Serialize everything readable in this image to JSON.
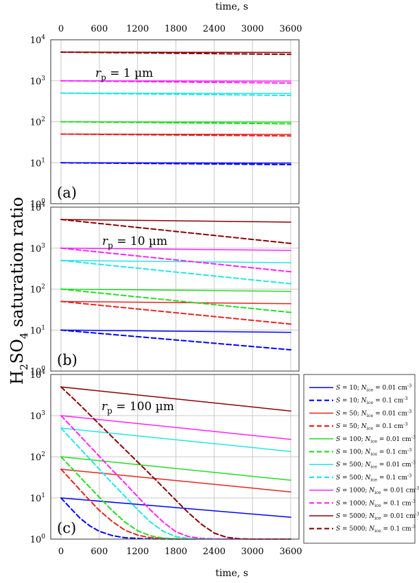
{
  "figure": {
    "ylabel": {
      "pre": "H",
      "sub1": "2",
      "mid": "SO",
      "sub2": "4",
      "post": " saturation ratio"
    },
    "xlabel_top": "time, s",
    "xlabel_bottom": "time, s"
  },
  "chart_data": {
    "type": "line",
    "x_ticks": [
      0,
      600,
      1200,
      1800,
      2400,
      3000,
      3600
    ],
    "xlim": [
      0,
      3600
    ],
    "yscale": "log",
    "ylim": [
      1,
      10000
    ],
    "grid": true,
    "legend_placement": "right of panel (c)",
    "series_styles": [
      {
        "S": 10,
        "color": "#0000ff"
      },
      {
        "S": 50,
        "color": "#e8231f"
      },
      {
        "S": 100,
        "color": "#22dd22"
      },
      {
        "S": 500,
        "color": "#22e6e6"
      },
      {
        "S": 1000,
        "color": "#ff22ff"
      },
      {
        "S": 5000,
        "color": "#8b0000"
      }
    ],
    "legend": [
      {
        "S": "10",
        "N": "0.01",
        "dashed": false,
        "color": "#0000ff"
      },
      {
        "S": "10",
        "N": "0.1",
        "dashed": true,
        "color": "#0000ff"
      },
      {
        "S": "50",
        "N": "0.01",
        "dashed": false,
        "color": "#e8231f"
      },
      {
        "S": "50",
        "N": "0.1",
        "dashed": true,
        "color": "#e8231f"
      },
      {
        "S": "100",
        "N": "0.01",
        "dashed": false,
        "color": "#22dd22"
      },
      {
        "S": "100",
        "N": "0.1",
        "dashed": true,
        "color": "#22dd22"
      },
      {
        "S": "500",
        "N": "0.01",
        "dashed": false,
        "color": "#22e6e6"
      },
      {
        "S": "500",
        "N": "0.1",
        "dashed": true,
        "color": "#22e6e6"
      },
      {
        "S": "1000",
        "N": "0.01",
        "dashed": false,
        "color": "#ff22ff"
      },
      {
        "S": "1000",
        "N": "0.1",
        "dashed": true,
        "color": "#ff22ff"
      },
      {
        "S": "5000",
        "N": "0.01",
        "dashed": false,
        "color": "#8b0000"
      },
      {
        "S": "5000",
        "N": "0.1",
        "dashed": true,
        "color": "#8b0000"
      }
    ],
    "legend_text": {
      "S_sym": "S",
      "eq": " = ",
      "sep": "; ",
      "N_sym": "N",
      "N_sub": "ice",
      "unit": " cm",
      "unit_exp": "-3"
    },
    "panels": [
      {
        "letter": "(a)",
        "rp_label": {
          "sym": "r",
          "sub": "p",
          "value": " = 1 µm"
        },
        "series": [
          {
            "S": 10,
            "N": 0.01,
            "x": [
              0,
              3600
            ],
            "y": [
              10,
              9.8
            ]
          },
          {
            "S": 10,
            "N": 0.1,
            "x": [
              0,
              3600
            ],
            "y": [
              10,
              9.0
            ]
          },
          {
            "S": 50,
            "N": 0.01,
            "x": [
              0,
              3600
            ],
            "y": [
              50,
              49
            ]
          },
          {
            "S": 50,
            "N": 0.1,
            "x": [
              0,
              3600
            ],
            "y": [
              50,
              45
            ]
          },
          {
            "S": 100,
            "N": 0.01,
            "x": [
              0,
              3600
            ],
            "y": [
              100,
              98
            ]
          },
          {
            "S": 100,
            "N": 0.1,
            "x": [
              0,
              3600
            ],
            "y": [
              100,
              89
            ]
          },
          {
            "S": 500,
            "N": 0.01,
            "x": [
              0,
              3600
            ],
            "y": [
              500,
              490
            ]
          },
          {
            "S": 500,
            "N": 0.1,
            "x": [
              0,
              3600
            ],
            "y": [
              500,
              440
            ]
          },
          {
            "S": 1000,
            "N": 0.01,
            "x": [
              0,
              3600
            ],
            "y": [
              1000,
              980
            ]
          },
          {
            "S": 1000,
            "N": 0.1,
            "x": [
              0,
              3600
            ],
            "y": [
              1000,
              880
            ]
          },
          {
            "S": 5000,
            "N": 0.01,
            "x": [
              0,
              3600
            ],
            "y": [
              5000,
              4900
            ]
          },
          {
            "S": 5000,
            "N": 0.1,
            "x": [
              0,
              3600
            ],
            "y": [
              5000,
              4400
            ]
          }
        ]
      },
      {
        "letter": "(b)",
        "rp_label": {
          "sym": "r",
          "sub": "p",
          "value": " = 10 µm"
        },
        "series": [
          {
            "S": 10,
            "N": 0.01,
            "x": [
              0,
              3600
            ],
            "y": [
              10,
              8.8
            ]
          },
          {
            "S": 10,
            "N": 0.1,
            "x": [
              0,
              3600
            ],
            "y": [
              10,
              3.3
            ]
          },
          {
            "S": 50,
            "N": 0.01,
            "x": [
              0,
              3600
            ],
            "y": [
              50,
              44
            ]
          },
          {
            "S": 50,
            "N": 0.1,
            "x": [
              0,
              3600
            ],
            "y": [
              50,
              14
            ]
          },
          {
            "S": 100,
            "N": 0.01,
            "x": [
              0,
              3600
            ],
            "y": [
              100,
              88
            ]
          },
          {
            "S": 100,
            "N": 0.1,
            "x": [
              0,
              3600
            ],
            "y": [
              100,
              27
            ]
          },
          {
            "S": 500,
            "N": 0.01,
            "x": [
              0,
              3600
            ],
            "y": [
              500,
              440
            ]
          },
          {
            "S": 500,
            "N": 0.1,
            "x": [
              0,
              3600
            ],
            "y": [
              500,
              135
            ]
          },
          {
            "S": 1000,
            "N": 0.01,
            "x": [
              0,
              3600
            ],
            "y": [
              1000,
              880
            ]
          },
          {
            "S": 1000,
            "N": 0.1,
            "x": [
              0,
              3600
            ],
            "y": [
              1000,
              265
            ]
          },
          {
            "S": 5000,
            "N": 0.01,
            "x": [
              0,
              3600
            ],
            "y": [
              5000,
              4300
            ]
          },
          {
            "S": 5000,
            "N": 0.1,
            "x": [
              0,
              3600
            ],
            "y": [
              5000,
              1300
            ]
          }
        ]
      },
      {
        "letter": "(c)",
        "rp_label": {
          "sym": "r",
          "sub": "p",
          "value": " = 100 µm"
        },
        "series": [
          {
            "S": 10,
            "N": 0.01,
            "x": [
              0,
              3600
            ],
            "y": [
              10,
              3.4
            ]
          },
          {
            "S": 10,
            "N": 0.1,
            "x": [
              0,
              150,
              300,
              450,
              600,
              800,
              1000,
              1300,
              1800,
              2400,
              3600
            ],
            "y": [
              10,
              5.6,
              3.2,
              2.1,
              1.55,
              1.22,
              1.08,
              1.02,
              1.0,
              1.0,
              1.0
            ]
          },
          {
            "S": 50,
            "N": 0.01,
            "x": [
              0,
              3600
            ],
            "y": [
              50,
              14
            ]
          },
          {
            "S": 50,
            "N": 0.1,
            "x": [
              0,
              200,
              400,
              600,
              800,
              1000,
              1200,
              1400,
              1700,
              2000,
              2400,
              3600
            ],
            "y": [
              50,
              23,
              10.5,
              5,
              2.7,
              1.65,
              1.25,
              1.08,
              1.02,
              1.0,
              1.0,
              1.0
            ]
          },
          {
            "S": 100,
            "N": 0.01,
            "x": [
              0,
              3600
            ],
            "y": [
              100,
              27
            ]
          },
          {
            "S": 100,
            "N": 0.1,
            "x": [
              0,
              200,
              400,
              600,
              800,
              1000,
              1200,
              1400,
              1600,
              1900,
              2200,
              2500,
              3600
            ],
            "y": [
              100,
              47,
              22,
              10.4,
              5,
              2.6,
              1.6,
              1.2,
              1.06,
              1.01,
              1.0,
              1.0,
              1.0
            ]
          },
          {
            "S": 500,
            "N": 0.01,
            "x": [
              0,
              3600
            ],
            "y": [
              500,
              135
            ]
          },
          {
            "S": 500,
            "N": 0.1,
            "x": [
              0,
              200,
              400,
              600,
              800,
              1000,
              1200,
              1400,
              1600,
              1800,
              2000,
              2200,
              2500,
              3600
            ],
            "y": [
              500,
              230,
              108,
              50,
              23,
              11,
              5.2,
              2.6,
              1.55,
              1.15,
              1.04,
              1.0,
              1.0,
              1.0
            ]
          },
          {
            "S": 1000,
            "N": 0.01,
            "x": [
              0,
              3600
            ],
            "y": [
              1000,
              265
            ]
          },
          {
            "S": 1000,
            "N": 0.1,
            "x": [
              0,
              200,
              400,
              600,
              800,
              1000,
              1200,
              1400,
              1600,
              1800,
              2000,
              2200,
              2400,
              2700,
              3600
            ],
            "y": [
              1000,
              470,
              220,
              103,
              48,
              23,
              10.8,
              5.1,
              2.6,
              1.5,
              1.15,
              1.04,
              1.01,
              1.0,
              1.0
            ]
          },
          {
            "S": 5000,
            "N": 0.01,
            "x": [
              0,
              3600
            ],
            "y": [
              5000,
              1300
            ]
          },
          {
            "S": 5000,
            "N": 0.1,
            "x": [
              0,
              300,
              600,
              900,
              1200,
              1500,
              1800,
              2000,
              2200,
              2400,
              2600,
              2800,
              3000,
              3600
            ],
            "y": [
              5000,
              1800,
              620,
              215,
              75,
              26,
              8.8,
              4.3,
              2.3,
              1.4,
              1.1,
              1.02,
              1.0,
              1.0
            ]
          }
        ]
      }
    ]
  }
}
